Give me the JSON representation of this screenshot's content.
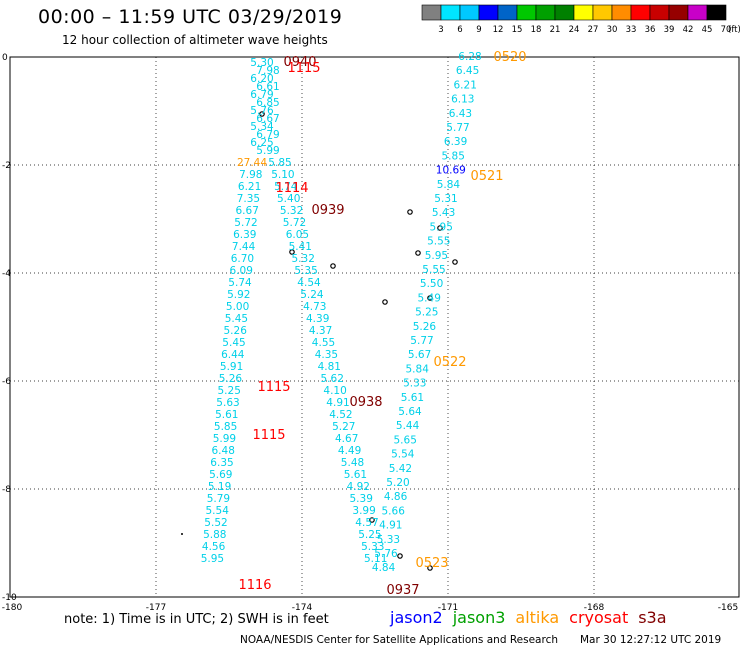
{
  "header": {
    "title": "00:00 – 11:59 UTC 03/29/2019",
    "subtitle": "12 hour collection of altimeter wave heights"
  },
  "colorbar": {
    "unit": "(ft)",
    "ticks": [
      "3",
      "6",
      "9",
      "12",
      "15",
      "18",
      "21",
      "24",
      "27",
      "30",
      "33",
      "36",
      "39",
      "42",
      "45",
      "70"
    ],
    "colors": [
      "#808080",
      "#00e5ff",
      "#00c8ff",
      "#0000ff",
      "#0064c8",
      "#00c800",
      "#00a000",
      "#008000",
      "#ffff00",
      "#ffc800",
      "#ff8c00",
      "#ff0000",
      "#c80000",
      "#960000",
      "#c800c8",
      "#000000"
    ]
  },
  "axes": {
    "x_ticks": [
      "-180",
      "-177",
      "-174",
      "-171",
      "-168",
      "-165"
    ],
    "y_ticks": [
      "0",
      "-2",
      "-4",
      "-6",
      "-8",
      "-10"
    ],
    "x_range": [
      -180,
      -165
    ],
    "y_range": [
      -10,
      0
    ]
  },
  "tracks": [
    {
      "name": "track-1115",
      "color": "#00d0e8",
      "labels": [
        "5.30",
        "7.98",
        "6.20",
        "6.61",
        "6.79",
        "6.85",
        "5.76",
        "6.67",
        "5.34",
        "6.79",
        "6.25",
        "5.99",
        "27.44",
        "5.85",
        "7.98",
        "5.10",
        "6.21",
        "5.74",
        "7.35",
        "5.40",
        "6.67",
        "5.32",
        "5.72",
        "5.72",
        "6.39",
        "6.05",
        "7.44",
        "5.41",
        "6.70",
        "5.32",
        "6.09",
        "5.35",
        "5.74",
        "4.54",
        "5.92",
        "5.24",
        "5.00",
        "4.73",
        "5.45",
        "4.39",
        "5.26",
        "4.37",
        "5.45",
        "4.55",
        "6.44",
        "4.35",
        "5.91",
        "4.81",
        "5.26",
        "5.62",
        "5.25",
        "4.10",
        "5.63",
        "4.91",
        "5.61",
        "4.52",
        "5.85",
        "5.27",
        "5.99",
        "4.67",
        "6.48",
        "4.49",
        "6.35",
        "5.48",
        "5.69",
        "5.61",
        "5.19",
        "4.92",
        "5.79",
        "5.39",
        "5.54",
        "3.99",
        "5.52",
        "4.57",
        "5.88",
        "5.25",
        "4.56",
        "5.33",
        "5.95",
        "5.11"
      ]
    },
    {
      "name": "track-0520",
      "color": "#00d0e8",
      "labels": [
        "6.28",
        "6.45",
        "6.21",
        "6.13",
        "6.43",
        "5.77",
        "6.39",
        "5.85",
        "10.69",
        "5.84",
        "5.31",
        "5.43",
        "5.95",
        "5.55",
        "5.95",
        "5.55",
        "5.50",
        "5.49",
        "5.25",
        "5.26",
        "5.77",
        "5.67",
        "5.84",
        "5.33",
        "5.61",
        "5.64",
        "5.44",
        "5.65",
        "5.54",
        "5.42",
        "5.20",
        "4.86",
        "5.66",
        "4.91",
        "5.33",
        "5.76",
        "4.84"
      ]
    }
  ],
  "time_labels": [
    {
      "text": "0940",
      "color": "#800000"
    },
    {
      "text": "1115",
      "color": "#ff0000"
    },
    {
      "text": "1114",
      "color": "#ff0000"
    },
    {
      "text": "0939",
      "color": "#800000"
    },
    {
      "text": "1115",
      "color": "#ff0000"
    },
    {
      "text": "0938",
      "color": "#800000"
    },
    {
      "text": "1115",
      "color": "#ff0000"
    },
    {
      "text": "1116",
      "color": "#ff0000"
    },
    {
      "text": "0937",
      "color": "#800000"
    },
    {
      "text": "0520",
      "color": "#ff9900"
    },
    {
      "text": "0521",
      "color": "#ff9900"
    },
    {
      "text": "0522",
      "color": "#ff9900"
    },
    {
      "text": "0523",
      "color": "#ff9900"
    }
  ],
  "footer": {
    "note": "note:  1) Time is in UTC;  2) SWH is in feet",
    "satellites": [
      {
        "name": "jason2",
        "color": "#0000ff"
      },
      {
        "name": "jason3",
        "color": "#00a000"
      },
      {
        "name": "altika",
        "color": "#ff9900"
      },
      {
        "name": "cryosat",
        "color": "#ff0000"
      },
      {
        "name": "s3a",
        "color": "#800000"
      }
    ],
    "credit": "NOAA/NESDIS Center for Satellite Applications and Research",
    "timestamp": "Mar 30 12:27:12 UTC 2019"
  }
}
